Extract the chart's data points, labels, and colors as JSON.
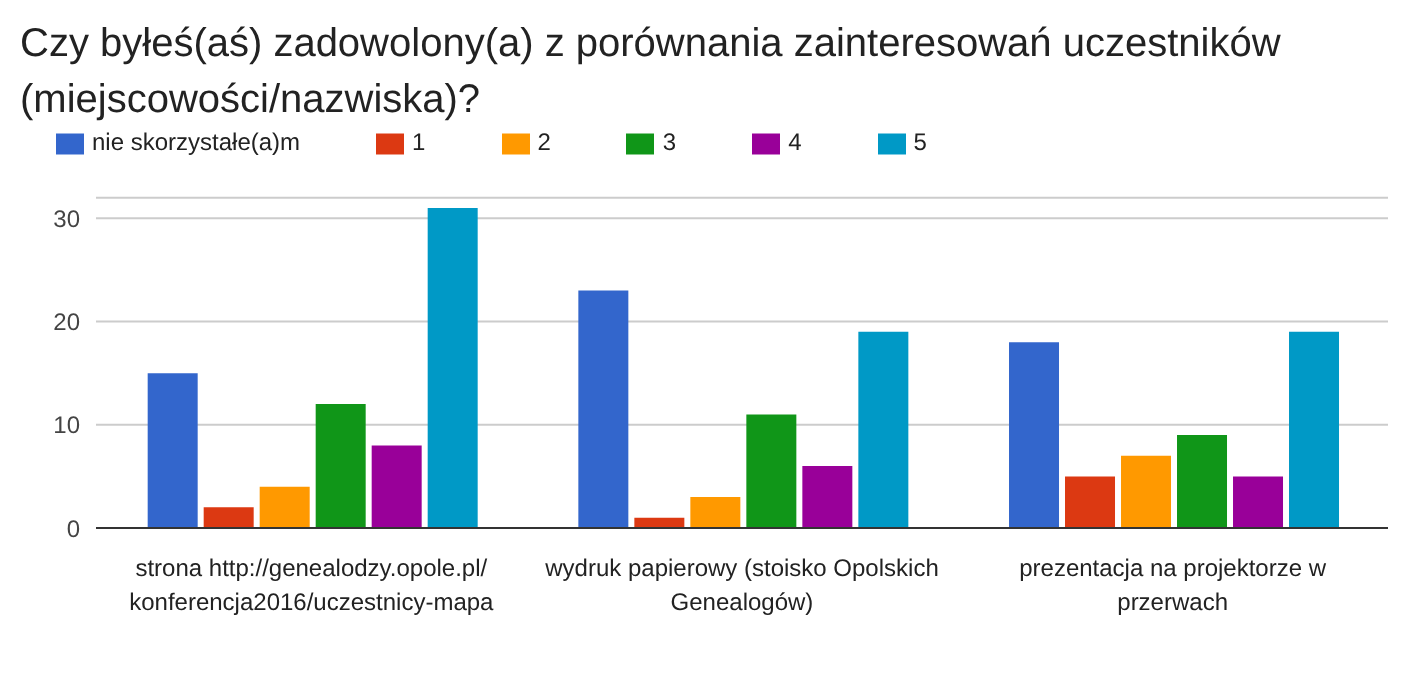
{
  "chart_data": {
    "type": "bar",
    "title": "Czy byłeś(aś) zadowolony(a) z porównania zainteresowań uczestników (miejscowości/nazwiska)?",
    "categories": [
      "strona http://genealodzy.opole.pl/konferencja2016/uczestnicy-mapa",
      "wydruk papierowy (stoisko Opolskich Genealogów)",
      "prezentacja na projektorze w przerwach"
    ],
    "series": [
      {
        "name": "nie skorzystałe(a)m",
        "color": "#3366cc",
        "values": [
          15,
          23,
          18
        ]
      },
      {
        "name": "1",
        "color": "#dc3912",
        "values": [
          2,
          1,
          5
        ]
      },
      {
        "name": "2",
        "color": "#ff9900",
        "values": [
          4,
          3,
          7
        ]
      },
      {
        "name": "3",
        "color": "#109618",
        "values": [
          12,
          11,
          9
        ]
      },
      {
        "name": "4",
        "color": "#990099",
        "values": [
          8,
          6,
          5
        ]
      },
      {
        "name": "5",
        "color": "#0099c6",
        "values": [
          31,
          19,
          19
        ]
      }
    ],
    "ylim": [
      0,
      32
    ],
    "yticks": [
      0,
      10,
      20,
      30
    ],
    "grid": "y",
    "legend": "top left"
  }
}
